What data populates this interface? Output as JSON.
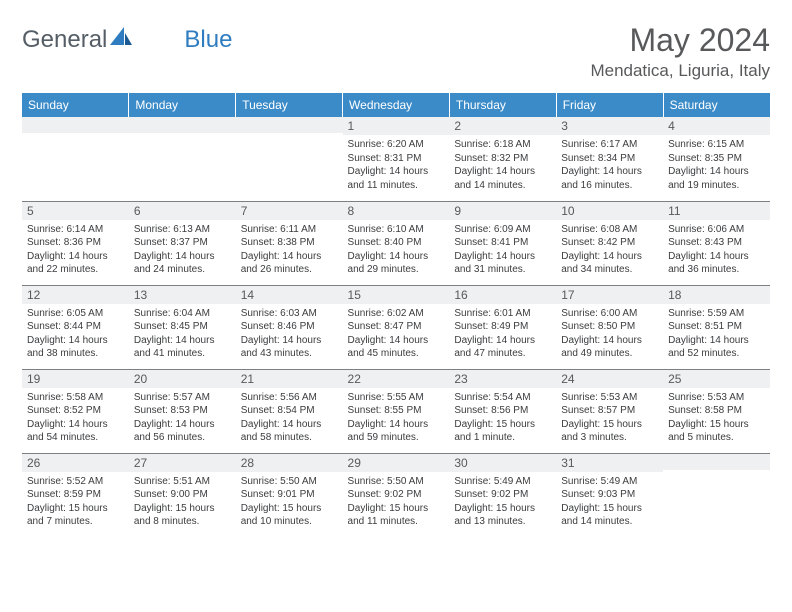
{
  "brand": {
    "name_main": "General",
    "name_accent": "Blue"
  },
  "title": "May 2024",
  "location": "Mendatica, Liguria, Italy",
  "colors": {
    "header_bg": "#3b8bc9",
    "header_text": "#ffffff",
    "daynum_bg": "#eef0f2",
    "text_body": "#3b3c3e",
    "text_heading": "#58595b",
    "rule": "#7d7f82",
    "logo_gray": "#555e66",
    "logo_blue": "#2f7dc0"
  },
  "day_headers": [
    "Sunday",
    "Monday",
    "Tuesday",
    "Wednesday",
    "Thursday",
    "Friday",
    "Saturday"
  ],
  "weeks": [
    [
      {
        "n": "",
        "l1": "",
        "l2": "",
        "l3": "",
        "l4": ""
      },
      {
        "n": "",
        "l1": "",
        "l2": "",
        "l3": "",
        "l4": ""
      },
      {
        "n": "",
        "l1": "",
        "l2": "",
        "l3": "",
        "l4": ""
      },
      {
        "n": "1",
        "l1": "Sunrise: 6:20 AM",
        "l2": "Sunset: 8:31 PM",
        "l3": "Daylight: 14 hours",
        "l4": "and 11 minutes."
      },
      {
        "n": "2",
        "l1": "Sunrise: 6:18 AM",
        "l2": "Sunset: 8:32 PM",
        "l3": "Daylight: 14 hours",
        "l4": "and 14 minutes."
      },
      {
        "n": "3",
        "l1": "Sunrise: 6:17 AM",
        "l2": "Sunset: 8:34 PM",
        "l3": "Daylight: 14 hours",
        "l4": "and 16 minutes."
      },
      {
        "n": "4",
        "l1": "Sunrise: 6:15 AM",
        "l2": "Sunset: 8:35 PM",
        "l3": "Daylight: 14 hours",
        "l4": "and 19 minutes."
      }
    ],
    [
      {
        "n": "5",
        "l1": "Sunrise: 6:14 AM",
        "l2": "Sunset: 8:36 PM",
        "l3": "Daylight: 14 hours",
        "l4": "and 22 minutes."
      },
      {
        "n": "6",
        "l1": "Sunrise: 6:13 AM",
        "l2": "Sunset: 8:37 PM",
        "l3": "Daylight: 14 hours",
        "l4": "and 24 minutes."
      },
      {
        "n": "7",
        "l1": "Sunrise: 6:11 AM",
        "l2": "Sunset: 8:38 PM",
        "l3": "Daylight: 14 hours",
        "l4": "and 26 minutes."
      },
      {
        "n": "8",
        "l1": "Sunrise: 6:10 AM",
        "l2": "Sunset: 8:40 PM",
        "l3": "Daylight: 14 hours",
        "l4": "and 29 minutes."
      },
      {
        "n": "9",
        "l1": "Sunrise: 6:09 AM",
        "l2": "Sunset: 8:41 PM",
        "l3": "Daylight: 14 hours",
        "l4": "and 31 minutes."
      },
      {
        "n": "10",
        "l1": "Sunrise: 6:08 AM",
        "l2": "Sunset: 8:42 PM",
        "l3": "Daylight: 14 hours",
        "l4": "and 34 minutes."
      },
      {
        "n": "11",
        "l1": "Sunrise: 6:06 AM",
        "l2": "Sunset: 8:43 PM",
        "l3": "Daylight: 14 hours",
        "l4": "and 36 minutes."
      }
    ],
    [
      {
        "n": "12",
        "l1": "Sunrise: 6:05 AM",
        "l2": "Sunset: 8:44 PM",
        "l3": "Daylight: 14 hours",
        "l4": "and 38 minutes."
      },
      {
        "n": "13",
        "l1": "Sunrise: 6:04 AM",
        "l2": "Sunset: 8:45 PM",
        "l3": "Daylight: 14 hours",
        "l4": "and 41 minutes."
      },
      {
        "n": "14",
        "l1": "Sunrise: 6:03 AM",
        "l2": "Sunset: 8:46 PM",
        "l3": "Daylight: 14 hours",
        "l4": "and 43 minutes."
      },
      {
        "n": "15",
        "l1": "Sunrise: 6:02 AM",
        "l2": "Sunset: 8:47 PM",
        "l3": "Daylight: 14 hours",
        "l4": "and 45 minutes."
      },
      {
        "n": "16",
        "l1": "Sunrise: 6:01 AM",
        "l2": "Sunset: 8:49 PM",
        "l3": "Daylight: 14 hours",
        "l4": "and 47 minutes."
      },
      {
        "n": "17",
        "l1": "Sunrise: 6:00 AM",
        "l2": "Sunset: 8:50 PM",
        "l3": "Daylight: 14 hours",
        "l4": "and 49 minutes."
      },
      {
        "n": "18",
        "l1": "Sunrise: 5:59 AM",
        "l2": "Sunset: 8:51 PM",
        "l3": "Daylight: 14 hours",
        "l4": "and 52 minutes."
      }
    ],
    [
      {
        "n": "19",
        "l1": "Sunrise: 5:58 AM",
        "l2": "Sunset: 8:52 PM",
        "l3": "Daylight: 14 hours",
        "l4": "and 54 minutes."
      },
      {
        "n": "20",
        "l1": "Sunrise: 5:57 AM",
        "l2": "Sunset: 8:53 PM",
        "l3": "Daylight: 14 hours",
        "l4": "and 56 minutes."
      },
      {
        "n": "21",
        "l1": "Sunrise: 5:56 AM",
        "l2": "Sunset: 8:54 PM",
        "l3": "Daylight: 14 hours",
        "l4": "and 58 minutes."
      },
      {
        "n": "22",
        "l1": "Sunrise: 5:55 AM",
        "l2": "Sunset: 8:55 PM",
        "l3": "Daylight: 14 hours",
        "l4": "and 59 minutes."
      },
      {
        "n": "23",
        "l1": "Sunrise: 5:54 AM",
        "l2": "Sunset: 8:56 PM",
        "l3": "Daylight: 15 hours",
        "l4": "and 1 minute."
      },
      {
        "n": "24",
        "l1": "Sunrise: 5:53 AM",
        "l2": "Sunset: 8:57 PM",
        "l3": "Daylight: 15 hours",
        "l4": "and 3 minutes."
      },
      {
        "n": "25",
        "l1": "Sunrise: 5:53 AM",
        "l2": "Sunset: 8:58 PM",
        "l3": "Daylight: 15 hours",
        "l4": "and 5 minutes."
      }
    ],
    [
      {
        "n": "26",
        "l1": "Sunrise: 5:52 AM",
        "l2": "Sunset: 8:59 PM",
        "l3": "Daylight: 15 hours",
        "l4": "and 7 minutes."
      },
      {
        "n": "27",
        "l1": "Sunrise: 5:51 AM",
        "l2": "Sunset: 9:00 PM",
        "l3": "Daylight: 15 hours",
        "l4": "and 8 minutes."
      },
      {
        "n": "28",
        "l1": "Sunrise: 5:50 AM",
        "l2": "Sunset: 9:01 PM",
        "l3": "Daylight: 15 hours",
        "l4": "and 10 minutes."
      },
      {
        "n": "29",
        "l1": "Sunrise: 5:50 AM",
        "l2": "Sunset: 9:02 PM",
        "l3": "Daylight: 15 hours",
        "l4": "and 11 minutes."
      },
      {
        "n": "30",
        "l1": "Sunrise: 5:49 AM",
        "l2": "Sunset: 9:02 PM",
        "l3": "Daylight: 15 hours",
        "l4": "and 13 minutes."
      },
      {
        "n": "31",
        "l1": "Sunrise: 5:49 AM",
        "l2": "Sunset: 9:03 PM",
        "l3": "Daylight: 15 hours",
        "l4": "and 14 minutes."
      },
      {
        "n": "",
        "l1": "",
        "l2": "",
        "l3": "",
        "l4": ""
      }
    ]
  ]
}
